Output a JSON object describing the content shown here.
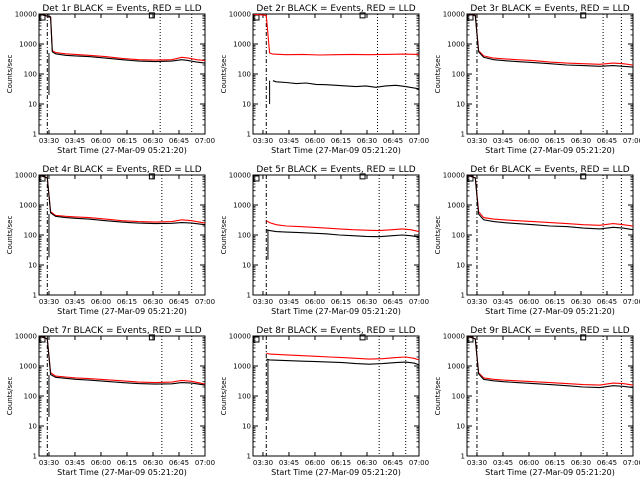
{
  "chart_data": [
    {
      "type": "line",
      "title": "Det 1r BLACK = Events, RED = LLD",
      "ylabel": "Counts/sec",
      "xlabel": "Start Time (27-Mar-09 05:21:20)",
      "x_ticks": [
        "03:30",
        "03:45",
        "06:00",
        "06:15",
        "06:30",
        "06:45",
        "07:00"
      ],
      "y_ticks": [
        "1",
        "10",
        "100",
        "1000",
        "10000"
      ],
      "yscale": "log",
      "ylim": [
        1,
        10000
      ],
      "series": [
        {
          "color": "#ff0000",
          "x": [
            0.0,
            0.07,
            0.08,
            0.1,
            0.16,
            0.22,
            0.3,
            0.4,
            0.5,
            0.6,
            0.7,
            0.8,
            0.86,
            0.9,
            0.95,
            1.0
          ],
          "y": [
            12000,
            8000,
            600,
            520,
            470,
            450,
            420,
            380,
            330,
            300,
            290,
            300,
            360,
            340,
            300,
            280
          ]
        },
        {
          "color": "#000000",
          "x": [
            0.0,
            0.07,
            0.08,
            0.1,
            0.16,
            0.22,
            0.3,
            0.4,
            0.5,
            0.6,
            0.7,
            0.8,
            0.86,
            0.9,
            0.95,
            1.0
          ],
          "y": [
            12000,
            8000,
            550,
            470,
            420,
            400,
            380,
            340,
            300,
            270,
            260,
            270,
            300,
            280,
            250,
            230
          ]
        }
      ],
      "vlines": [
        {
          "x": 0.05,
          "style": "dash-dot"
        },
        {
          "x": 0.73,
          "style": "dotted"
        },
        {
          "x": 0.92,
          "style": "dotted"
        }
      ],
      "spikes": [
        {
          "x": 0.06,
          "ymin": 20,
          "ymax": 500
        }
      ],
      "marker": {
        "x": 0.68,
        "y": 9000
      }
    },
    {
      "type": "line",
      "title": "Det 2r BLACK = Events, RED = LLD",
      "ylabel": "Counts/sec",
      "xlabel": "Start Time (27-Mar-09 05:21:20)",
      "x_ticks": [
        "03:30",
        "03:45",
        "06:00",
        "06:15",
        "06:30",
        "06:45",
        "07:00"
      ],
      "y_ticks": [
        "1",
        "10",
        "100",
        "1000",
        "10000"
      ],
      "yscale": "log",
      "ylim": [
        1,
        10000
      ],
      "series": [
        {
          "color": "#ff0000",
          "x": [
            0.0,
            0.08,
            0.1,
            0.12,
            0.2,
            0.3,
            0.4,
            0.5,
            0.6,
            0.7,
            0.8,
            0.9,
            1.0
          ],
          "y": [
            12000,
            9000,
            500,
            460,
            440,
            450,
            430,
            440,
            450,
            440,
            450,
            460,
            450
          ]
        },
        {
          "color": "#000000",
          "x": [
            0.12,
            0.14,
            0.2,
            0.26,
            0.32,
            0.38,
            0.44,
            0.5,
            0.56,
            0.62,
            0.68,
            0.74,
            0.8,
            0.86,
            0.92,
            1.0
          ],
          "y": [
            60,
            55,
            52,
            48,
            50,
            45,
            44,
            42,
            40,
            38,
            40,
            36,
            40,
            42,
            38,
            32
          ]
        }
      ],
      "vlines": [
        {
          "x": 0.08,
          "style": "dash-dot"
        },
        {
          "x": 0.75,
          "style": "dotted"
        },
        {
          "x": 0.92,
          "style": "dotted"
        }
      ],
      "spikes": [
        {
          "x": 0.1,
          "ymin": 10,
          "ymax": 60
        }
      ],
      "marker": {
        "x": 0.66,
        "y": 9000
      }
    },
    {
      "type": "line",
      "title": "Det 3r BLACK = Events, RED = LLD",
      "ylabel": "Counts/sec",
      "xlabel": "Start Time (27-Mar-09 05:21:20)",
      "x_ticks": [
        "03:30",
        "03:45",
        "06:00",
        "06:15",
        "06:30",
        "06:45",
        "07:00"
      ],
      "y_ticks": [
        "1",
        "10",
        "100",
        "1000",
        "10000"
      ],
      "yscale": "log",
      "ylim": [
        1,
        10000
      ],
      "series": [
        {
          "color": "#ff0000",
          "x": [
            0.0,
            0.05,
            0.07,
            0.1,
            0.16,
            0.22,
            0.3,
            0.4,
            0.5,
            0.6,
            0.7,
            0.8,
            0.88,
            0.94,
            1.0
          ],
          "y": [
            12000,
            9000,
            600,
            400,
            340,
            320,
            300,
            280,
            250,
            230,
            220,
            210,
            230,
            220,
            200
          ]
        },
        {
          "color": "#000000",
          "x": [
            0.0,
            0.05,
            0.07,
            0.1,
            0.16,
            0.22,
            0.3,
            0.4,
            0.5,
            0.6,
            0.7,
            0.8,
            0.88,
            0.94,
            1.0
          ],
          "y": [
            12000,
            9000,
            550,
            360,
            300,
            280,
            260,
            240,
            220,
            200,
            190,
            180,
            190,
            180,
            170
          ]
        }
      ],
      "vlines": [
        {
          "x": 0.06,
          "style": "dash-dot"
        },
        {
          "x": 0.82,
          "style": "dotted"
        },
        {
          "x": 0.93,
          "style": "dotted"
        }
      ],
      "spikes": [],
      "marker": {
        "x": 0.7,
        "y": 9000
      }
    },
    {
      "type": "line",
      "title": "Det 4r BLACK = Events, RED = LLD",
      "ylabel": "Counts/sec",
      "xlabel": "Start Time (27-Mar-09 05:21:20)",
      "x_ticks": [
        "03:30",
        "03:45",
        "06:00",
        "06:15",
        "06:30",
        "06:45",
        "07:00"
      ],
      "y_ticks": [
        "1",
        "10",
        "100",
        "1000",
        "10000"
      ],
      "yscale": "log",
      "ylim": [
        1,
        10000
      ],
      "series": [
        {
          "color": "#ff0000",
          "x": [
            0.0,
            0.05,
            0.07,
            0.1,
            0.16,
            0.22,
            0.3,
            0.4,
            0.5,
            0.6,
            0.7,
            0.8,
            0.86,
            0.92,
            1.0
          ],
          "y": [
            12000,
            8000,
            600,
            450,
            420,
            400,
            380,
            340,
            300,
            280,
            270,
            280,
            320,
            300,
            250
          ]
        },
        {
          "color": "#000000",
          "x": [
            0.0,
            0.05,
            0.07,
            0.1,
            0.16,
            0.22,
            0.3,
            0.4,
            0.5,
            0.6,
            0.7,
            0.8,
            0.86,
            0.92,
            1.0
          ],
          "y": [
            12000,
            8000,
            550,
            420,
            380,
            360,
            340,
            300,
            270,
            250,
            240,
            245,
            260,
            250,
            220
          ]
        }
      ],
      "vlines": [
        {
          "x": 0.05,
          "style": "dash-dot"
        },
        {
          "x": 0.74,
          "style": "dotted"
        },
        {
          "x": 0.92,
          "style": "dotted"
        }
      ],
      "spikes": [
        {
          "x": 0.06,
          "ymin": 18,
          "ymax": 500
        }
      ],
      "marker": {
        "x": 0.68,
        "y": 9000
      }
    },
    {
      "type": "line",
      "title": "Det 5r BLACK = Events, RED = LLD",
      "ylabel": "Counts/sec",
      "xlabel": "Start Time (27-Mar-09 05:21:20)",
      "x_ticks": [
        "03:30",
        "03:45",
        "06:00",
        "06:15",
        "06:30",
        "06:45",
        "07:00"
      ],
      "y_ticks": [
        "1",
        "10",
        "100",
        "1000",
        "10000"
      ],
      "yscale": "log",
      "ylim": [
        1,
        10000
      ],
      "series": [
        {
          "color": "#ff0000",
          "x": [
            0.08,
            0.1,
            0.14,
            0.2,
            0.28,
            0.36,
            0.44,
            0.52,
            0.6,
            0.68,
            0.76,
            0.84,
            0.9,
            0.95,
            1.0
          ],
          "y": [
            300,
            260,
            220,
            200,
            190,
            180,
            170,
            160,
            150,
            145,
            140,
            150,
            160,
            150,
            130
          ]
        },
        {
          "color": "#000000",
          "x": [
            0.08,
            0.1,
            0.14,
            0.2,
            0.28,
            0.36,
            0.44,
            0.52,
            0.6,
            0.68,
            0.76,
            0.84,
            0.9,
            0.95,
            1.0
          ],
          "y": [
            150,
            140,
            130,
            125,
            120,
            115,
            110,
            100,
            95,
            90,
            88,
            95,
            100,
            95,
            85
          ]
        }
      ],
      "vlines": [
        {
          "x": 0.08,
          "style": "dash-dot"
        },
        {
          "x": 0.76,
          "style": "dotted"
        },
        {
          "x": 0.92,
          "style": "dotted"
        }
      ],
      "spikes": [
        {
          "x": 0.09,
          "ymin": 15,
          "ymax": 150
        }
      ],
      "marker": {
        "x": 0.66,
        "y": 9000
      }
    },
    {
      "type": "line",
      "title": "Det 6r BLACK = Events, RED = LLD",
      "ylabel": "Counts/sec",
      "xlabel": "Start Time (27-Mar-09 05:21:20)",
      "x_ticks": [
        "03:30",
        "03:45",
        "06:00",
        "06:15",
        "06:30",
        "06:45",
        "07:00"
      ],
      "y_ticks": [
        "1",
        "10",
        "100",
        "1000",
        "10000"
      ],
      "yscale": "log",
      "ylim": [
        1,
        10000
      ],
      "series": [
        {
          "color": "#ff0000",
          "x": [
            0.0,
            0.05,
            0.07,
            0.1,
            0.16,
            0.22,
            0.3,
            0.4,
            0.5,
            0.6,
            0.7,
            0.8,
            0.88,
            0.94,
            1.0
          ],
          "y": [
            12000,
            8000,
            600,
            380,
            340,
            320,
            300,
            280,
            260,
            240,
            220,
            210,
            240,
            220,
            200
          ]
        },
        {
          "color": "#000000",
          "x": [
            0.0,
            0.05,
            0.07,
            0.1,
            0.16,
            0.22,
            0.3,
            0.4,
            0.5,
            0.6,
            0.7,
            0.8,
            0.88,
            0.94,
            1.0
          ],
          "y": [
            12000,
            8000,
            500,
            320,
            280,
            260,
            240,
            220,
            200,
            190,
            170,
            160,
            180,
            170,
            150
          ]
        }
      ],
      "vlines": [
        {
          "x": 0.06,
          "style": "dash-dot"
        },
        {
          "x": 0.82,
          "style": "dotted"
        },
        {
          "x": 0.93,
          "style": "dotted"
        }
      ],
      "spikes": [],
      "marker": {
        "x": 0.7,
        "y": 9000
      }
    },
    {
      "type": "line",
      "title": "Det 7r BLACK = Events, RED = LLD",
      "ylabel": "Counts/sec",
      "xlabel": "Start Time (27-Mar-09 05:21:20)",
      "x_ticks": [
        "03:30",
        "03:45",
        "06:00",
        "06:15",
        "06:30",
        "06:45",
        "07:00"
      ],
      "y_ticks": [
        "1",
        "10",
        "100",
        "1000",
        "10000"
      ],
      "yscale": "log",
      "ylim": [
        1,
        10000
      ],
      "series": [
        {
          "color": "#ff0000",
          "x": [
            0.0,
            0.05,
            0.07,
            0.1,
            0.16,
            0.22,
            0.3,
            0.4,
            0.5,
            0.6,
            0.7,
            0.8,
            0.86,
            0.92,
            1.0
          ],
          "y": [
            12000,
            8000,
            600,
            460,
            430,
            400,
            380,
            350,
            320,
            290,
            280,
            290,
            330,
            310,
            250
          ]
        },
        {
          "color": "#000000",
          "x": [
            0.0,
            0.05,
            0.07,
            0.1,
            0.16,
            0.22,
            0.3,
            0.4,
            0.5,
            0.6,
            0.7,
            0.8,
            0.86,
            0.92,
            1.0
          ],
          "y": [
            12000,
            8000,
            520,
            420,
            390,
            360,
            340,
            310,
            280,
            260,
            250,
            255,
            280,
            270,
            230
          ]
        }
      ],
      "vlines": [
        {
          "x": 0.05,
          "style": "dash-dot"
        },
        {
          "x": 0.74,
          "style": "dotted"
        },
        {
          "x": 0.92,
          "style": "dotted"
        }
      ],
      "spikes": [
        {
          "x": 0.06,
          "ymin": 20,
          "ymax": 500
        }
      ],
      "marker": {
        "x": 0.68,
        "y": 9000
      }
    },
    {
      "type": "line",
      "title": "Det 8r BLACK = Events, RED = LLD",
      "ylabel": "Counts/sec",
      "xlabel": "Start Time (27-Mar-09 05:21:20)",
      "x_ticks": [
        "03:30",
        "03:45",
        "06:00",
        "06:15",
        "06:30",
        "06:45",
        "07:00"
      ],
      "y_ticks": [
        "1",
        "10",
        "100",
        "1000",
        "10000"
      ],
      "yscale": "log",
      "ylim": [
        1,
        10000
      ],
      "series": [
        {
          "color": "#ff0000",
          "x": [
            0.08,
            0.1,
            0.16,
            0.22,
            0.3,
            0.38,
            0.46,
            0.54,
            0.62,
            0.7,
            0.78,
            0.86,
            0.92,
            0.97,
            1.0
          ],
          "y": [
            2700,
            2500,
            2400,
            2300,
            2200,
            2100,
            2000,
            1900,
            1800,
            1700,
            1750,
            1900,
            2000,
            1800,
            1600
          ]
        },
        {
          "color": "#000000",
          "x": [
            0.08,
            0.1,
            0.16,
            0.22,
            0.3,
            0.38,
            0.46,
            0.54,
            0.62,
            0.7,
            0.78,
            0.86,
            0.92,
            0.97,
            1.0
          ],
          "y": [
            1700,
            1600,
            1550,
            1500,
            1450,
            1400,
            1350,
            1300,
            1200,
            1150,
            1200,
            1300,
            1350,
            1250,
            1100
          ]
        }
      ],
      "vlines": [
        {
          "x": 0.08,
          "style": "dash-dot"
        },
        {
          "x": 0.76,
          "style": "dotted"
        },
        {
          "x": 0.92,
          "style": "dotted"
        }
      ],
      "spikes": [
        {
          "x": 0.09,
          "ymin": 15,
          "ymax": 1700
        }
      ],
      "marker": {
        "x": 0.66,
        "y": 9000
      }
    },
    {
      "type": "line",
      "title": "Det 9r BLACK = Events, RED = LLD",
      "ylabel": "Counts/sec",
      "xlabel": "Start Time (27-Mar-09 05:21:20)",
      "x_ticks": [
        "03:30",
        "03:45",
        "06:00",
        "06:15",
        "06:30",
        "06:45",
        "07:00"
      ],
      "y_ticks": [
        "1",
        "10",
        "100",
        "1000",
        "10000"
      ],
      "yscale": "log",
      "ylim": [
        1,
        10000
      ],
      "series": [
        {
          "color": "#ff0000",
          "x": [
            0.0,
            0.05,
            0.07,
            0.1,
            0.16,
            0.22,
            0.3,
            0.4,
            0.5,
            0.6,
            0.7,
            0.8,
            0.88,
            0.94,
            1.0
          ],
          "y": [
            12000,
            8000,
            600,
            400,
            360,
            340,
            320,
            300,
            280,
            260,
            240,
            230,
            270,
            260,
            230
          ]
        },
        {
          "color": "#000000",
          "x": [
            0.0,
            0.05,
            0.07,
            0.1,
            0.16,
            0.22,
            0.3,
            0.4,
            0.5,
            0.6,
            0.7,
            0.8,
            0.88,
            0.94,
            1.0
          ],
          "y": [
            12000,
            8000,
            550,
            360,
            320,
            300,
            280,
            260,
            240,
            220,
            200,
            190,
            220,
            210,
            190
          ]
        }
      ],
      "vlines": [
        {
          "x": 0.06,
          "style": "dash-dot"
        },
        {
          "x": 0.82,
          "style": "dotted"
        },
        {
          "x": 0.93,
          "style": "dotted"
        }
      ],
      "spikes": [],
      "marker": {
        "x": 0.7,
        "y": 9000
      }
    }
  ]
}
